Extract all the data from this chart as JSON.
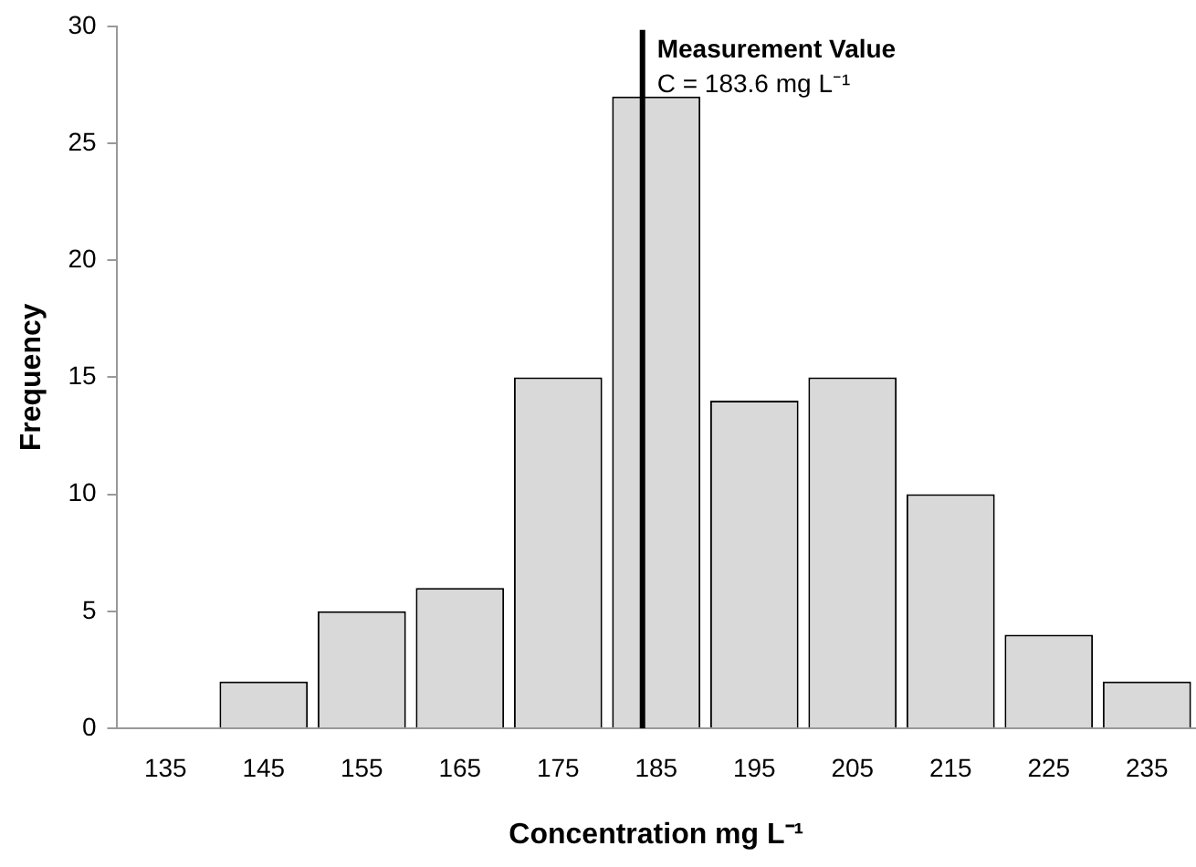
{
  "chart_data": {
    "type": "bar",
    "xlabel": "Concentration mg L⁻¹",
    "ylabel": "Frequency",
    "x": [
      135,
      145,
      155,
      165,
      175,
      185,
      195,
      205,
      215,
      225,
      235
    ],
    "values": [
      0,
      2,
      5,
      6,
      15,
      27,
      14,
      15,
      10,
      4,
      2
    ],
    "color": "#d9d9d9",
    "xlim": [
      130,
      240
    ],
    "xticks": [
      135,
      145,
      155,
      165,
      175,
      185,
      195,
      205,
      215,
      225,
      235
    ],
    "ylim": [
      0,
      30
    ],
    "yticks": [
      0,
      5,
      10,
      15,
      20,
      25,
      30
    ],
    "grid": false,
    "legend": false,
    "ref_lines": [
      {
        "axis": "x",
        "value": 183.6,
        "label": "Measurement Value",
        "color": "#000000"
      }
    ],
    "annotations": [
      "C = 183.6 mg L⁻¹"
    ]
  }
}
